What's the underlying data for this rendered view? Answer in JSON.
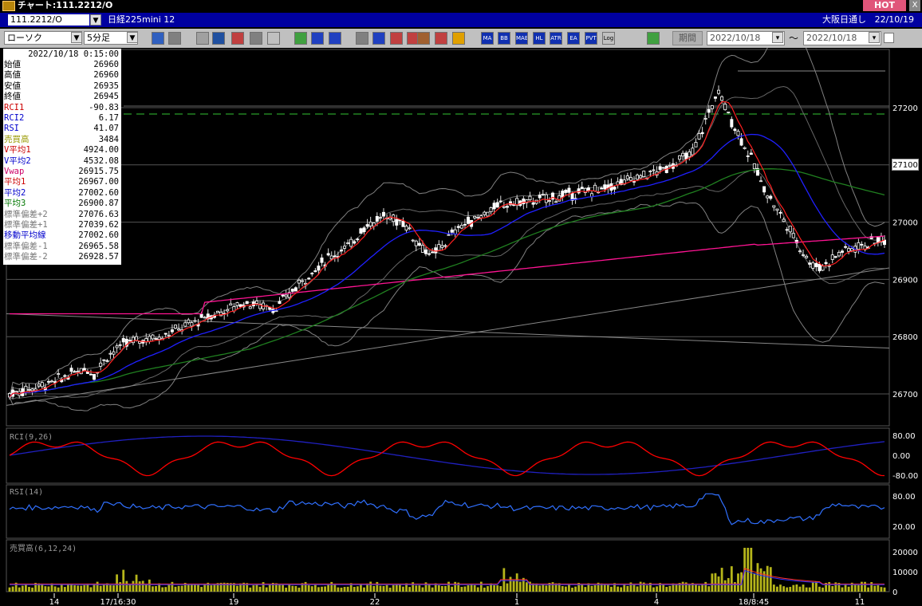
{
  "window": {
    "title": "チャート:111.2212/O",
    "hot_label": "HOT",
    "close_label": "X"
  },
  "symbol_bar": {
    "code": "111.2212/O",
    "name": "日経225mini 12",
    "market": "大阪日通し",
    "date": "22/10/19"
  },
  "toolbar": {
    "chart_type": "ローソク",
    "interval": "5分足",
    "buttons": [
      "MA",
      "BB",
      "MAE",
      "HL",
      "ATR",
      "EA",
      "PVT",
      "Log"
    ],
    "period_label": "期間",
    "from_date": "2022/10/18",
    "to_date": "2022/10/18",
    "tilde": "～"
  },
  "info_panel": {
    "datetime": "2022/10/18 0:15:00",
    "rows": [
      {
        "label": "始値",
        "value": "26960",
        "color": "#000000"
      },
      {
        "label": "高値",
        "value": "26960",
        "color": "#000000"
      },
      {
        "label": "安値",
        "value": "26935",
        "color": "#000000"
      },
      {
        "label": "終値",
        "value": "26945",
        "color": "#000000"
      },
      {
        "label": "RCI1",
        "value": "-90.83",
        "color": "#cc0000"
      },
      {
        "label": "RCI2",
        "value": "6.17",
        "color": "#0000cc"
      },
      {
        "label": "RSI",
        "value": "41.07",
        "color": "#0000cc"
      },
      {
        "label": "売買高",
        "value": "3484",
        "color": "#999900"
      },
      {
        "label": "V平均1",
        "value": "4924.00",
        "color": "#cc0000"
      },
      {
        "label": "V平均2",
        "value": "4532.08",
        "color": "#0000cc"
      },
      {
        "label": "Vwap",
        "value": "26915.75",
        "color": "#cc0066"
      },
      {
        "label": "平均1",
        "value": "26967.00",
        "color": "#cc0000"
      },
      {
        "label": "平均2",
        "value": "27002.60",
        "color": "#0000cc"
      },
      {
        "label": "平均3",
        "value": "26900.87",
        "color": "#007700"
      },
      {
        "label": "標準偏差+2",
        "value": "27076.63",
        "color": "#777777"
      },
      {
        "label": "標準偏差+1",
        "value": "27039.62",
        "color": "#777777"
      },
      {
        "label": "移動平均線",
        "value": "27002.60",
        "color": "#0000cc"
      },
      {
        "label": "標準偏差-1",
        "value": "26965.58",
        "color": "#777777"
      },
      {
        "label": "標準偏差-2",
        "value": "26928.57",
        "color": "#777777"
      }
    ]
  },
  "price_axis": {
    "labels": [
      "27200",
      "27100",
      "27000",
      "26900",
      "26800",
      "26700"
    ],
    "current": "27100"
  },
  "rci_panel": {
    "title": "RCI(9,26)",
    "labels": [
      "80.00",
      "0.00",
      "-80.00"
    ]
  },
  "rsi_panel": {
    "title": "RSI(14)",
    "labels": [
      "80.00",
      "20.00"
    ]
  },
  "volume_panel": {
    "title": "売買高(6,12,24)",
    "labels": [
      "20000",
      "10000",
      "0"
    ]
  },
  "time_axis": {
    "labels": [
      "14",
      "17/16:30",
      "19",
      "22",
      "1",
      "4",
      "18/8:45",
      "11"
    ]
  },
  "colors": {
    "up": "#ffffff",
    "down": "#ffffff",
    "ma1": "#ff2020",
    "ma2": "#2020ff",
    "ma3": "#208020",
    "vwap": "#ff1493",
    "band": "#808080",
    "volume": "#b5b51a",
    "rci1": "#ff0000",
    "rci2": "#2020c0",
    "rsi": "#3070ff"
  }
}
